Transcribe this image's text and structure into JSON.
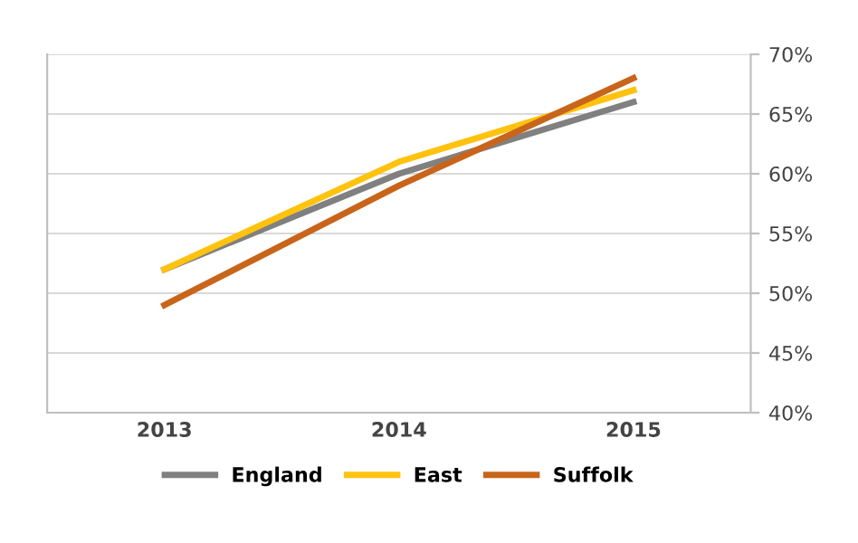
{
  "chart_data": {
    "type": "line",
    "categories": [
      "2013",
      "2014",
      "2015"
    ],
    "series": [
      {
        "name": "England",
        "color": "#808080",
        "values": [
          52,
          60,
          66
        ]
      },
      {
        "name": "East",
        "color": "#ffc20e",
        "values": [
          52,
          61,
          67
        ]
      },
      {
        "name": "Suffolk",
        "color": "#c8651b",
        "values": [
          49,
          59,
          68
        ]
      }
    ],
    "ylim": [
      40,
      70
    ],
    "yticks": [
      {
        "value": 40,
        "label": "40%"
      },
      {
        "value": 45,
        "label": "45%"
      },
      {
        "value": 50,
        "label": "50%"
      },
      {
        "value": 55,
        "label": "55%"
      },
      {
        "value": 60,
        "label": "60%"
      },
      {
        "value": 65,
        "label": "65%"
      },
      {
        "value": 70,
        "label": "70%"
      }
    ],
    "grid": "y",
    "legend": "bottom",
    "marker": "none",
    "line_style": "solid"
  }
}
